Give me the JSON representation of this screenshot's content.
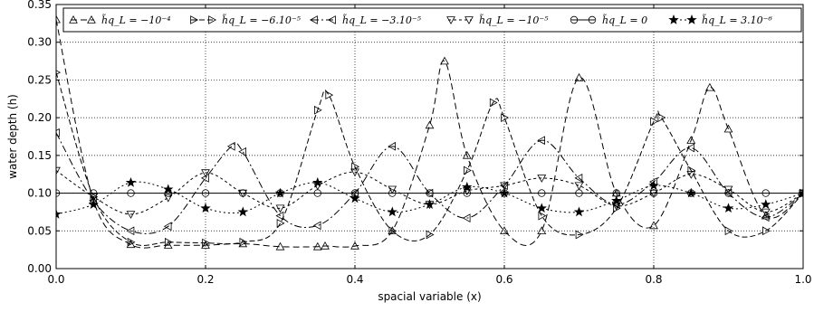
{
  "chart_data": {
    "type": "line",
    "xlabel": "spacial variable (x)",
    "ylabel": "water depth (h)",
    "xlim": [
      0,
      1
    ],
    "ylim": [
      0,
      0.35
    ],
    "xticks": [
      "0.0",
      "0.2",
      "0.4",
      "0.6",
      "0.8",
      "1.0"
    ],
    "yticks": [
      "0.00",
      "0.05",
      "0.10",
      "0.15",
      "0.20",
      "0.25",
      "0.30",
      "0.35"
    ],
    "grid": true,
    "legend_position": "top",
    "series": [
      {
        "name": "hq_L = −10^−4",
        "legend_label": "h̃q_L = −10⁻⁴",
        "marker": "triangle-up",
        "dash": "7,4",
        "x": [
          0,
          0.05,
          0.1,
          0.15,
          0.2,
          0.25,
          0.3,
          0.35,
          0.36,
          0.4,
          0.45,
          0.5,
          0.52,
          0.55,
          0.6,
          0.65,
          0.7,
          0.75,
          0.8,
          0.85,
          0.875,
          0.9,
          0.95,
          1.0
        ],
        "y": [
          0.33,
          0.09,
          0.032,
          0.031,
          0.031,
          0.033,
          0.029,
          0.029,
          0.03,
          0.03,
          0.05,
          0.19,
          0.275,
          0.15,
          0.05,
          0.05,
          0.253,
          0.1,
          0.057,
          0.17,
          0.24,
          0.185,
          0.07,
          0.1
        ]
      },
      {
        "name": "hq_L = −6.10^−5",
        "legend_label": "h̃q_L = −6.10⁻⁵",
        "marker": "triangle-right",
        "dash": "6,3",
        "x": [
          0,
          0.05,
          0.1,
          0.15,
          0.2,
          0.25,
          0.3,
          0.35,
          0.365,
          0.4,
          0.45,
          0.5,
          0.55,
          0.585,
          0.6,
          0.65,
          0.7,
          0.75,
          0.8,
          0.81,
          0.85,
          0.9,
          0.95,
          1.0
        ],
        "y": [
          0.26,
          0.095,
          0.035,
          0.035,
          0.034,
          0.035,
          0.06,
          0.21,
          0.23,
          0.135,
          0.05,
          0.045,
          0.13,
          0.22,
          0.2,
          0.07,
          0.045,
          0.08,
          0.195,
          0.2,
          0.13,
          0.05,
          0.05,
          0.1
        ]
      },
      {
        "name": "hq_L = −3.10^−5",
        "legend_label": "h̃q_L = −3.10⁻⁵",
        "marker": "triangle-left",
        "dash": "8,3,2,3",
        "x": [
          0,
          0.05,
          0.1,
          0.15,
          0.2,
          0.235,
          0.25,
          0.3,
          0.35,
          0.4,
          0.45,
          0.5,
          0.55,
          0.6,
          0.65,
          0.7,
          0.75,
          0.8,
          0.85,
          0.9,
          0.95,
          1.0
        ],
        "y": [
          0.18,
          0.09,
          0.05,
          0.056,
          0.12,
          0.162,
          0.155,
          0.07,
          0.057,
          0.1,
          0.162,
          0.1,
          0.067,
          0.11,
          0.17,
          0.12,
          0.085,
          0.115,
          0.16,
          0.1,
          0.068,
          0.1
        ]
      },
      {
        "name": "hq_L = −10^−5",
        "legend_label": "h̃q_L = −10⁻⁵",
        "marker": "triangle-down",
        "dash": "3,3",
        "x": [
          0,
          0.05,
          0.1,
          0.15,
          0.2,
          0.25,
          0.3,
          0.35,
          0.4,
          0.45,
          0.5,
          0.55,
          0.6,
          0.65,
          0.7,
          0.75,
          0.8,
          0.85,
          0.9,
          0.95,
          1.0
        ],
        "y": [
          0.13,
          0.095,
          0.072,
          0.094,
          0.127,
          0.1,
          0.08,
          0.11,
          0.128,
          0.105,
          0.085,
          0.103,
          0.11,
          0.12,
          0.11,
          0.083,
          0.1,
          0.125,
          0.105,
          0.075,
          0.1
        ]
      },
      {
        "name": "hq_L = 0",
        "legend_label": "h̃q_L = 0",
        "marker": "circle",
        "dash": "",
        "x": [
          0,
          0.05,
          0.1,
          0.15,
          0.2,
          0.25,
          0.3,
          0.35,
          0.4,
          0.45,
          0.5,
          0.55,
          0.6,
          0.65,
          0.7,
          0.75,
          0.8,
          0.85,
          0.9,
          0.95,
          1.0
        ],
        "y": [
          0.1,
          0.1,
          0.1,
          0.1,
          0.1,
          0.1,
          0.1,
          0.1,
          0.1,
          0.1,
          0.1,
          0.1,
          0.1,
          0.1,
          0.1,
          0.1,
          0.1,
          0.1,
          0.1,
          0.1,
          0.1
        ]
      },
      {
        "name": "hq_L = 3.10^−6",
        "legend_label": "h̃q_L = 3.10⁻⁶",
        "marker": "star",
        "dash": "2,3",
        "x": [
          0,
          0.05,
          0.1,
          0.15,
          0.2,
          0.25,
          0.3,
          0.35,
          0.4,
          0.45,
          0.5,
          0.55,
          0.6,
          0.65,
          0.7,
          0.75,
          0.8,
          0.85,
          0.9,
          0.95,
          1.0
        ],
        "y": [
          0.072,
          0.085,
          0.114,
          0.105,
          0.08,
          0.075,
          0.1,
          0.114,
          0.093,
          0.075,
          0.085,
          0.108,
          0.1,
          0.08,
          0.075,
          0.09,
          0.11,
          0.1,
          0.08,
          0.085,
          0.1
        ]
      }
    ]
  }
}
